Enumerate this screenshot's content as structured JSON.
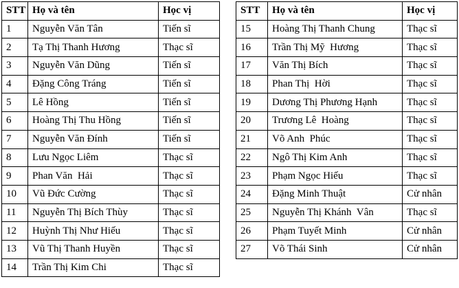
{
  "page": {
    "background": "#ffffff",
    "border_color": "#000000",
    "text_color": "#000000"
  },
  "tables": [
    {
      "name": "staff-table-left",
      "headers": {
        "stt": "STT",
        "name": "Họ và tên",
        "degree": "Học vị"
      },
      "rows": [
        {
          "stt": "1",
          "name": "Nguyễn Văn Tân",
          "degree": "Tiến sĩ"
        },
        {
          "stt": "2",
          "name": "Tạ Thị Thanh Hương",
          "degree": "Thạc sĩ"
        },
        {
          "stt": "3",
          "name": "Nguyễn Văn Dũng",
          "degree": "Tiến sĩ"
        },
        {
          "stt": "4",
          "name": "Đặng Công Tráng",
          "degree": "Tiến sĩ"
        },
        {
          "stt": "5",
          "name": "Lê Hồng",
          "degree": "Tiến sĩ"
        },
        {
          "stt": "6",
          "name": "Hoàng Thị Thu Hồng",
          "degree": "Tiến sĩ"
        },
        {
          "stt": "7",
          "name": "Nguyễn Văn Đính",
          "degree": "Tiến sĩ"
        },
        {
          "stt": "8",
          "name": "Lưu Ngọc Liêm",
          "degree": "Thạc sĩ"
        },
        {
          "stt": "9",
          "name": "Phan Văn  Hải",
          "degree": "Thạc sĩ"
        },
        {
          "stt": "10",
          "name": "Vũ Đức Cường",
          "degree": "Thạc sĩ"
        },
        {
          "stt": "11",
          "name": "Nguyễn Thị Bích Thùy",
          "degree": "Thạc sĩ"
        },
        {
          "stt": "12",
          "name": "Huỳnh Thị Như Hiếu",
          "degree": "Thạc sĩ"
        },
        {
          "stt": "13",
          "name": "Vũ Thị Thanh Huyền",
          "degree": "Thạc sĩ"
        },
        {
          "stt": "14",
          "name": "Trần Thị Kim Chi",
          "degree": "Thạc sĩ"
        }
      ]
    },
    {
      "name": "staff-table-right",
      "headers": {
        "stt": "STT",
        "name": "Họ và tên",
        "degree": "Học vị"
      },
      "rows": [
        {
          "stt": "15",
          "name": "Hoàng Thị Thanh Chung",
          "degree": "Thạc sĩ"
        },
        {
          "stt": "16",
          "name": "Trần Thị Mỹ  Hương",
          "degree": "Thạc sĩ"
        },
        {
          "stt": "17",
          "name": "Văn Thị Bích",
          "degree": "Thạc sĩ"
        },
        {
          "stt": "18",
          "name": "Phan Thị  Hời",
          "degree": "Thạc sĩ"
        },
        {
          "stt": "19",
          "name": "Dương Thị Phương Hạnh",
          "degree": "Thạc sĩ"
        },
        {
          "stt": "20",
          "name": "Trương Lê  Hoàng",
          "degree": "Thạc sĩ"
        },
        {
          "stt": "21",
          "name": "Võ Anh  Phúc",
          "degree": "Thạc sĩ"
        },
        {
          "stt": "22",
          "name": "Ngô Thị Kim Anh",
          "degree": "Thạc sĩ"
        },
        {
          "stt": "23",
          "name": "Phạm Ngọc Hiếu",
          "degree": "Thạc sĩ"
        },
        {
          "stt": "24",
          "name": "Đặng Minh Thuật",
          "degree": "Cử nhân"
        },
        {
          "stt": "25",
          "name": "Nguyễn Thị Khánh  Vân",
          "degree": "Thạc sĩ"
        },
        {
          "stt": "26",
          "name": "Phạm Tuyết Minh",
          "degree": "Cử nhân"
        },
        {
          "stt": "27",
          "name": "Võ Thái Sinh",
          "degree": "Cử nhân"
        }
      ]
    }
  ]
}
